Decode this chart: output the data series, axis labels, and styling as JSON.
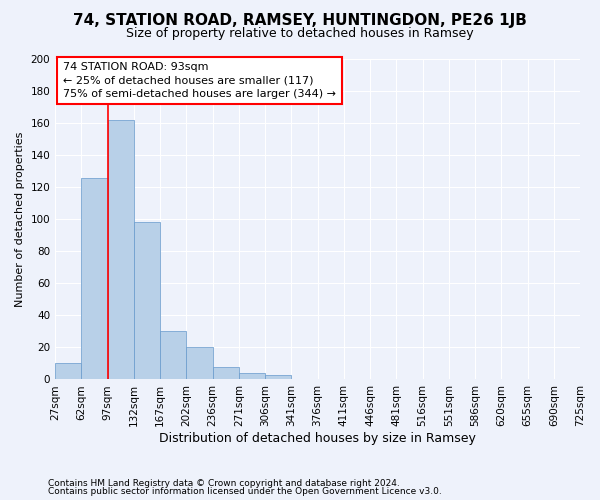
{
  "title1": "74, STATION ROAD, RAMSEY, HUNTINGDON, PE26 1JB",
  "title2": "Size of property relative to detached houses in Ramsey",
  "xlabel": "Distribution of detached houses by size in Ramsey",
  "ylabel": "Number of detached properties",
  "footnote1": "Contains HM Land Registry data © Crown copyright and database right 2024.",
  "footnote2": "Contains public sector information licensed under the Open Government Licence v3.0.",
  "bar_values": [
    10,
    126,
    162,
    98,
    30,
    20,
    8,
    4,
    3,
    0,
    0,
    0,
    0,
    0,
    0,
    0,
    0,
    0,
    0,
    0
  ],
  "bin_labels": [
    "27sqm",
    "62sqm",
    "97sqm",
    "132sqm",
    "167sqm",
    "202sqm",
    "236sqm",
    "271sqm",
    "306sqm",
    "341sqm",
    "376sqm",
    "411sqm",
    "446sqm",
    "481sqm",
    "516sqm",
    "551sqm",
    "586sqm",
    "620sqm",
    "655sqm",
    "690sqm",
    "725sqm"
  ],
  "bar_color": "#b8d0e8",
  "bar_edge_color": "#6699cc",
  "background_color": "#eef2fb",
  "annotation_text": "74 STATION ROAD: 93sqm\n← 25% of detached houses are smaller (117)\n75% of semi-detached houses are larger (344) →",
  "annotation_box_color": "white",
  "annotation_box_edge_color": "red",
  "vline_x": 2,
  "vline_color": "red",
  "ylim": [
    0,
    200
  ],
  "yticks": [
    0,
    20,
    40,
    60,
    80,
    100,
    120,
    140,
    160,
    180,
    200
  ],
  "title1_fontsize": 11,
  "title2_fontsize": 9,
  "ylabel_fontsize": 8,
  "xlabel_fontsize": 9,
  "tick_fontsize": 7.5,
  "annot_fontsize": 8,
  "footnote_fontsize": 6.5
}
